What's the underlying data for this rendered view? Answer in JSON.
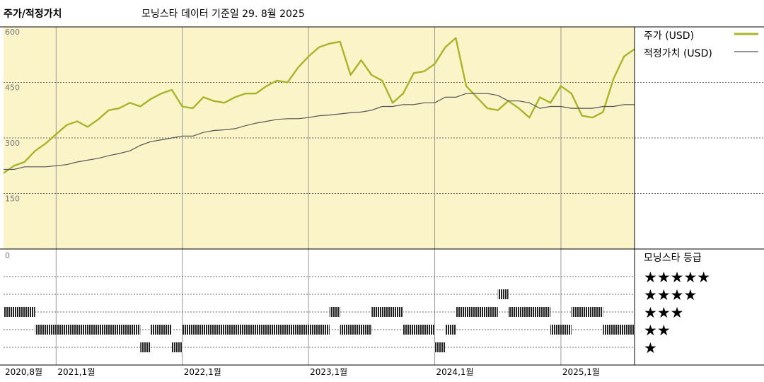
{
  "header": {
    "title": "주가/적정가치",
    "subtitle": "모닝스타 데이터 기준일 29. 8월 2025"
  },
  "legend": {
    "price_label": "주가 (USD)",
    "fair_value_label": "적정가치 (USD)",
    "rating_title": "모닝스타 등급",
    "star_labels": [
      "★★★★★",
      "★★★★",
      "★★★",
      "★★",
      "★"
    ]
  },
  "colors": {
    "price": "#a8b42a",
    "fair_value": "#555555",
    "upper_panel_bg": "#faf4c8",
    "rating_bar": "#222222",
    "grid": "#666666"
  },
  "chart_data": [
    {
      "type": "line",
      "y_ticks": [
        "600",
        "450",
        "300",
        "150"
      ],
      "ylim": [
        0,
        600
      ],
      "x_tick_labels": [
        "2020,8월",
        "2021,1월",
        "2022,1월",
        "2023,1월",
        "2024,1월",
        "2025,1월"
      ],
      "x_ticks": [
        "2020-08",
        "2021-01",
        "2022-01",
        "2023-01",
        "2024-01",
        "2025-01"
      ],
      "x_range": [
        "2020-08",
        "2025-08"
      ],
      "grid": true,
      "series": [
        {
          "name": "주가 (USD)",
          "x": [
            "2020-08",
            "2020-09",
            "2020-10",
            "2020-11",
            "2020-12",
            "2021-01",
            "2021-02",
            "2021-03",
            "2021-04",
            "2021-05",
            "2021-06",
            "2021-07",
            "2021-08",
            "2021-09",
            "2021-10",
            "2021-11",
            "2021-12",
            "2022-01",
            "2022-02",
            "2022-03",
            "2022-04",
            "2022-05",
            "2022-06",
            "2022-07",
            "2022-08",
            "2022-09",
            "2022-10",
            "2022-11",
            "2022-12",
            "2023-01",
            "2023-02",
            "2023-03",
            "2023-04",
            "2023-05",
            "2023-06",
            "2023-07",
            "2023-08",
            "2023-09",
            "2023-10",
            "2023-11",
            "2023-12",
            "2024-01",
            "2024-02",
            "2024-03",
            "2024-04",
            "2024-05",
            "2024-06",
            "2024-07",
            "2024-08",
            "2024-09",
            "2024-10",
            "2024-11",
            "2024-12",
            "2025-01",
            "2025-02",
            "2025-03",
            "2025-04",
            "2025-05",
            "2025-06",
            "2025-07",
            "2025-08"
          ],
          "values": [
            205,
            225,
            235,
            265,
            285,
            310,
            335,
            345,
            330,
            350,
            375,
            380,
            395,
            385,
            405,
            420,
            430,
            385,
            380,
            410,
            400,
            395,
            410,
            420,
            420,
            440,
            455,
            450,
            490,
            520,
            545,
            555,
            560,
            470,
            510,
            470,
            455,
            395,
            420,
            475,
            480,
            500,
            545,
            570,
            440,
            410,
            380,
            375,
            400,
            380,
            355,
            410,
            395,
            440,
            420,
            360,
            355,
            370,
            460,
            520,
            540
          ],
          "color": "#a8b42a"
        },
        {
          "name": "적정가치 (USD)",
          "x": [
            "2020-08",
            "2020-09",
            "2020-10",
            "2020-11",
            "2020-12",
            "2021-01",
            "2021-02",
            "2021-03",
            "2021-04",
            "2021-05",
            "2021-06",
            "2021-07",
            "2021-08",
            "2021-09",
            "2021-10",
            "2021-11",
            "2021-12",
            "2022-01",
            "2022-02",
            "2022-03",
            "2022-04",
            "2022-05",
            "2022-06",
            "2022-07",
            "2022-08",
            "2022-09",
            "2022-10",
            "2022-11",
            "2022-12",
            "2023-01",
            "2023-02",
            "2023-03",
            "2023-04",
            "2023-05",
            "2023-06",
            "2023-07",
            "2023-08",
            "2023-09",
            "2023-10",
            "2023-11",
            "2023-12",
            "2024-01",
            "2024-02",
            "2024-03",
            "2024-04",
            "2024-05",
            "2024-06",
            "2024-07",
            "2024-08",
            "2024-09",
            "2024-10",
            "2024-11",
            "2024-12",
            "2025-01",
            "2025-02",
            "2025-03",
            "2025-04",
            "2025-05",
            "2025-06",
            "2025-07",
            "2025-08"
          ],
          "values": [
            215,
            215,
            222,
            222,
            222,
            225,
            228,
            235,
            240,
            245,
            252,
            258,
            265,
            280,
            290,
            295,
            300,
            305,
            305,
            315,
            320,
            322,
            325,
            333,
            340,
            345,
            350,
            352,
            352,
            355,
            360,
            362,
            365,
            368,
            370,
            375,
            385,
            385,
            390,
            390,
            395,
            395,
            410,
            410,
            420,
            420,
            420,
            415,
            400,
            400,
            395,
            380,
            385,
            385,
            380,
            380,
            380,
            385,
            385,
            390,
            390
          ],
          "color": "#555555"
        }
      ]
    },
    {
      "type": "heatmap",
      "rows": [
        "★★★★★",
        "★★★★",
        "★★★",
        "★★",
        "★"
      ],
      "x_range": [
        "2020-08",
        "2025-08"
      ],
      "segments": [
        {
          "start": "2020-08-01",
          "end": "2020-11-01",
          "stars": 3
        },
        {
          "start": "2020-11-01",
          "end": "2021-09-01",
          "stars": 2
        },
        {
          "start": "2021-09-01",
          "end": "2021-10-01",
          "stars": 1
        },
        {
          "start": "2021-10-01",
          "end": "2021-12-01",
          "stars": 2
        },
        {
          "start": "2021-12-01",
          "end": "2022-01-01",
          "stars": 1
        },
        {
          "start": "2022-01-01",
          "end": "2023-03-01",
          "stars": 2
        },
        {
          "start": "2023-03-01",
          "end": "2023-04-01",
          "stars": 3
        },
        {
          "start": "2023-04-01",
          "end": "2023-07-01",
          "stars": 2
        },
        {
          "start": "2023-07-01",
          "end": "2023-10-01",
          "stars": 3
        },
        {
          "start": "2023-10-01",
          "end": "2024-01-01",
          "stars": 2
        },
        {
          "start": "2024-01-01",
          "end": "2024-02-01",
          "stars": 1
        },
        {
          "start": "2024-02-01",
          "end": "2024-03-01",
          "stars": 2
        },
        {
          "start": "2024-03-01",
          "end": "2024-07-01",
          "stars": 3
        },
        {
          "start": "2024-07-01",
          "end": "2024-08-01",
          "stars": 4
        },
        {
          "start": "2024-08-01",
          "end": "2024-12-01",
          "stars": 3
        },
        {
          "start": "2024-12-01",
          "end": "2025-02-01",
          "stars": 2
        },
        {
          "start": "2025-02-01",
          "end": "2025-05-01",
          "stars": 3
        },
        {
          "start": "2025-05-01",
          "end": "2025-08-31",
          "stars": 2
        }
      ]
    }
  ]
}
